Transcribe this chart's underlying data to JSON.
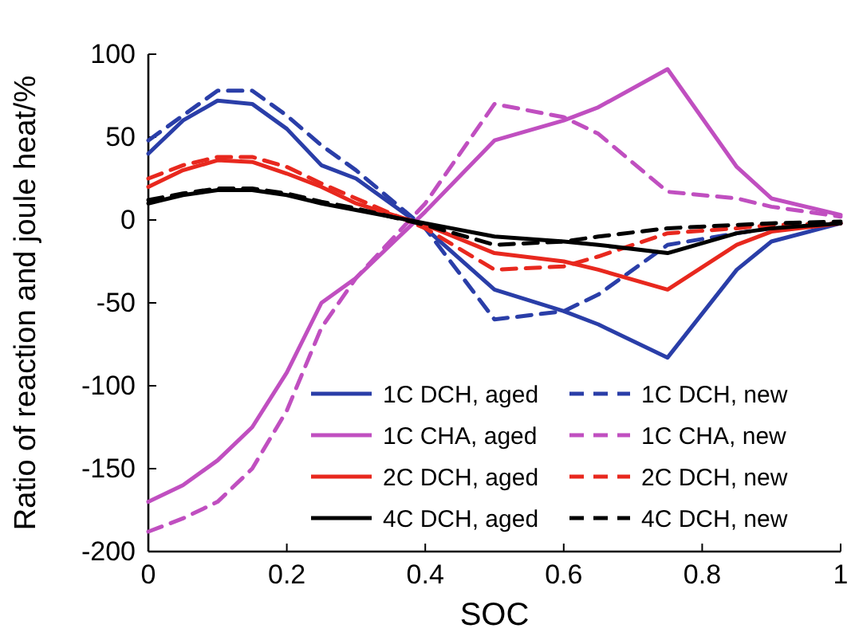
{
  "chart_data": {
    "type": "line",
    "xlabel": "SOC",
    "ylabel": "Ratio of reaction and joule heat/%",
    "x": [
      0,
      0.05,
      0.1,
      0.15,
      0.2,
      0.25,
      0.3,
      0.4,
      0.5,
      0.6,
      0.65,
      0.75,
      0.85,
      0.9,
      1
    ],
    "xlim": [
      0,
      1
    ],
    "xticks": [
      0,
      0.2,
      0.4,
      0.6,
      0.8,
      1
    ],
    "ylim": [
      -200,
      100
    ],
    "yticks": [
      -200,
      -150,
      -100,
      -50,
      0,
      50,
      100
    ],
    "grid": false,
    "legend": "bottom right",
    "series": [
      {
        "name": "1C DCH, aged",
        "color": "#2a3ea8",
        "line_style": "solid",
        "values": [
          40,
          60,
          72,
          70,
          55,
          33,
          25,
          -5,
          -42,
          -55,
          -63,
          -83,
          -30,
          -13,
          -2
        ]
      },
      {
        "name": "1C DCH, new",
        "color": "#2a3ea8",
        "line_style": "dashed",
        "values": [
          48,
          63,
          78,
          78,
          63,
          45,
          30,
          -5,
          -60,
          -55,
          -45,
          -15,
          -8,
          -5,
          -2
        ]
      },
      {
        "name": "1C CHA, aged",
        "color": "#c04fc0",
        "line_style": "solid",
        "values": [
          -170,
          -160,
          -145,
          -125,
          -92,
          -50,
          -35,
          5,
          48,
          60,
          68,
          91,
          32,
          13,
          3
        ]
      },
      {
        "name": "1C CHA, new",
        "color": "#c04fc0",
        "line_style": "dashed",
        "values": [
          -188,
          -180,
          -170,
          -150,
          -115,
          -65,
          -35,
          10,
          70,
          62,
          52,
          17,
          13,
          8,
          2
        ]
      },
      {
        "name": "2C DCH, aged",
        "color": "#e8281e",
        "line_style": "solid",
        "values": [
          20,
          30,
          36,
          35,
          28,
          20,
          10,
          -3,
          -20,
          -25,
          -30,
          -42,
          -15,
          -7,
          -2
        ]
      },
      {
        "name": "2C DCH, new",
        "color": "#e8281e",
        "line_style": "dashed",
        "values": [
          25,
          33,
          38,
          38,
          32,
          22,
          13,
          -5,
          -30,
          -28,
          -22,
          -8,
          -5,
          -3,
          -2
        ]
      },
      {
        "name": "4C DCH, aged",
        "color": "#000000",
        "line_style": "solid",
        "values": [
          10,
          15,
          18,
          18,
          15,
          10,
          6,
          -2,
          -10,
          -13,
          -15,
          -20,
          -8,
          -5,
          -2
        ]
      },
      {
        "name": "4C DCH, new",
        "color": "#000000",
        "line_style": "dashed",
        "values": [
          12,
          16,
          19,
          19,
          16,
          11,
          7,
          -3,
          -15,
          -13,
          -10,
          -5,
          -3,
          -2,
          -1
        ]
      }
    ]
  }
}
